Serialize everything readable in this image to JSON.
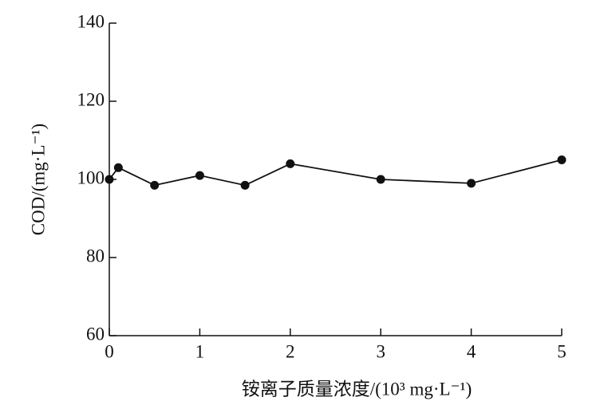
{
  "chart_data": {
    "type": "line",
    "x_label": "铵离子质量浓度/(10³ mg·L⁻¹)",
    "y_label": "COD/(mg·L⁻¹)",
    "x": [
      0,
      0.1,
      0.5,
      1,
      1.5,
      2,
      3,
      4,
      5
    ],
    "series": [
      {
        "color": "#111111",
        "values": [
          100,
          103,
          98.5,
          101,
          98.5,
          104,
          100,
          99,
          105
        ]
      }
    ],
    "xlim": [
      0,
      5
    ],
    "xticks": [
      0,
      1,
      2,
      3,
      4,
      5
    ],
    "ylim": [
      60,
      140
    ],
    "yticks": [
      60,
      80,
      100,
      120,
      140
    ],
    "grid": false
  }
}
